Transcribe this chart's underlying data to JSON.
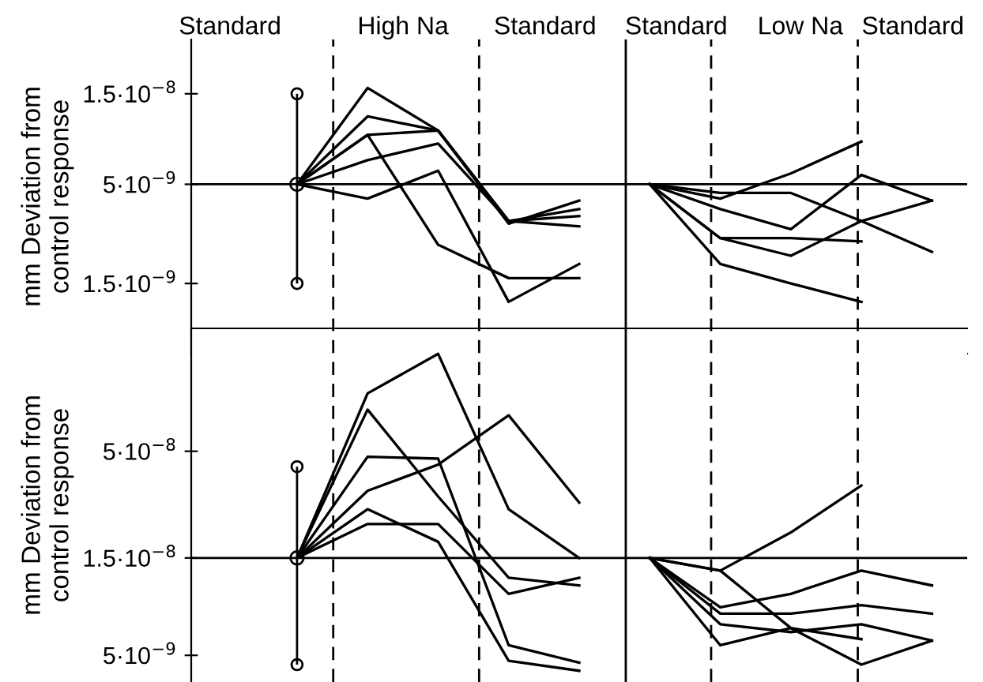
{
  "chart_data": [
    {
      "type": "line",
      "ylabel": "mm Deviation from\ncontrol response",
      "log": "y",
      "ylim": [
        6.4e-10,
        2.9e-08
      ],
      "yticks": [
        {
          "value": 1.5e-08,
          "label": "1.5·10$^{−8}$"
        },
        {
          "value": 5e-09,
          "label": "5·10$^{−9}$"
        },
        {
          "value": 1.5e-09,
          "label": "1.5·10$^{−9}$"
        }
      ],
      "tick_labels": "y",
      "marker": "none",
      "line_style": "solid",
      "categories": [
        null,
        null,
        null,
        null,
        null,
        null,
        null,
        null,
        null,
        null,
        null
      ],
      "ref_lines": [
        {
          "axis": "y",
          "value": 5e-09,
          "line_style": "solid"
        }
      ],
      "annotations": [
        "Standard",
        "High Na",
        "Standard",
        "Standard",
        "Low Na",
        "Standard"
      ],
      "series": [
        {
          "type": "scatter",
          "color": "#000000",
          "marker": "circle",
          "values": [
            null,
            5e-09,
            null,
            null,
            null,
            null,
            null,
            null,
            null,
            null,
            null
          ],
          "errors": [
            null,
            [
              1.5e-09,
              1.5e-08
            ],
            null,
            null,
            null,
            null,
            null,
            null,
            null,
            null,
            null
          ]
        },
        {
          "color": "#000000",
          "values": [
            null,
            5e-09,
            1.61e-08,
            9.6e-09,
            3.2e-09,
            3.7e-09,
            null,
            null,
            null,
            null,
            null
          ]
        },
        {
          "color": "#000000",
          "values": [
            null,
            5e-09,
            1.14e-08,
            9.6e-09,
            3.2e-09,
            3.4e-09,
            null,
            null,
            null,
            null,
            null
          ]
        },
        {
          "color": "#000000",
          "values": [
            null,
            5e-09,
            9.1e-09,
            9.6e-09,
            3.1e-09,
            4.1e-09,
            null,
            null,
            null,
            null,
            null
          ]
        },
        {
          "color": "#000000",
          "values": [
            null,
            5e-09,
            6.7e-09,
            8.2e-09,
            3.2e-09,
            3e-09,
            null,
            null,
            null,
            null,
            null
          ]
        },
        {
          "color": "#000000",
          "values": [
            null,
            5e-09,
            9.1e-09,
            2.4e-09,
            1.6e-09,
            1.6e-09,
            null,
            null,
            null,
            null,
            null
          ]
        },
        {
          "color": "#000000",
          "values": [
            null,
            5e-09,
            4.2e-09,
            5.9e-09,
            1.2e-09,
            1.9e-09,
            null,
            null,
            null,
            null,
            null
          ]
        },
        {
          "color": "#000000",
          "values": [
            null,
            null,
            null,
            null,
            null,
            null,
            5e-09,
            4.2e-09,
            5.7e-09,
            8.4e-09,
            null
          ]
        },
        {
          "color": "#000000",
          "values": [
            null,
            null,
            null,
            null,
            null,
            null,
            5e-09,
            4.5e-09,
            4.5e-09,
            3.2e-09,
            2.2e-09
          ]
        },
        {
          "color": "#000000",
          "values": [
            null,
            null,
            null,
            null,
            null,
            null,
            5e-09,
            3.7e-09,
            2.9e-09,
            5.6e-09,
            4.1e-09
          ]
        },
        {
          "color": "#000000",
          "values": [
            null,
            null,
            null,
            null,
            null,
            null,
            5e-09,
            2.6e-09,
            2.1e-09,
            3.2e-09,
            4.1e-09
          ]
        },
        {
          "color": "#000000",
          "values": [
            null,
            null,
            null,
            null,
            null,
            null,
            5e-09,
            2.6e-09,
            2.6e-09,
            2.5e-09,
            null
          ]
        },
        {
          "color": "#000000",
          "values": [
            null,
            null,
            null,
            null,
            null,
            null,
            5e-09,
            1.9e-09,
            1.5e-09,
            1.2e-09,
            null
          ]
        }
      ]
    },
    {
      "type": "line",
      "ylabel": "mm Deviation from\ncontrol response",
      "log": "y",
      "ylim": [
        3.7e-09,
        2e-07
      ],
      "yticks": [
        {
          "value": 5e-08,
          "label": "5·10$^{−8}$"
        },
        {
          "value": 1.5e-08,
          "label": "1.5·10$^{−8}$"
        },
        {
          "value": 5e-09,
          "label": "5·10$^{−9}$"
        }
      ],
      "tick_labels": "y",
      "marker": "none",
      "line_style": "solid",
      "categories": [
        null,
        null,
        null,
        null,
        null,
        null,
        null,
        null,
        null,
        null,
        null
      ],
      "ref_lines": [
        {
          "axis": "y",
          "value": 1.5e-08,
          "line_style": "solid"
        }
      ],
      "series": [
        {
          "type": "scatter",
          "color": "#000000",
          "marker": "circle",
          "values": [
            null,
            1.5e-08,
            null,
            null,
            null,
            null,
            null,
            null,
            null,
            null,
            null
          ],
          "errors": [
            null,
            [
              4.5e-09,
              4.2e-08
            ],
            null,
            null,
            null,
            null,
            null,
            null,
            null,
            null,
            null
          ]
        },
        {
          "color": "#000000",
          "values": [
            null,
            1.5e-08,
            9.6e-08,
            1.5e-07,
            2.6e-08,
            1.5e-08,
            null,
            null,
            null,
            null,
            null
          ]
        },
        {
          "color": "#000000",
          "values": [
            null,
            1.5e-08,
            3.2e-08,
            4.3e-08,
            7.5e-08,
            2.8e-08,
            null,
            null,
            null,
            null,
            null
          ]
        },
        {
          "color": "#000000",
          "values": [
            null,
            1.5e-08,
            8e-08,
            3e-08,
            1.2e-08,
            1.1e-08,
            null,
            null,
            null,
            null,
            null
          ]
        },
        {
          "color": "#000000",
          "values": [
            null,
            1.5e-08,
            4.7e-08,
            4.6e-08,
            5.6e-09,
            4.6e-09,
            null,
            null,
            null,
            null,
            null
          ]
        },
        {
          "color": "#000000",
          "values": [
            null,
            1.5e-08,
            2.6e-08,
            1.8e-08,
            4.7e-09,
            4.2e-09,
            null,
            null,
            null,
            null,
            null
          ]
        },
        {
          "color": "#000000",
          "values": [
            null,
            1.5e-08,
            2.2e-08,
            2.2e-08,
            1e-08,
            1.2e-08,
            null,
            null,
            null,
            null,
            null
          ]
        },
        {
          "color": "#000000",
          "values": [
            null,
            null,
            null,
            null,
            null,
            null,
            1.5e-08,
            1.3e-08,
            2e-08,
            3.4e-08,
            null
          ]
        },
        {
          "color": "#000000",
          "values": [
            null,
            null,
            null,
            null,
            null,
            null,
            1.5e-08,
            8.6e-09,
            1e-08,
            1.3e-08,
            1.1e-08
          ]
        },
        {
          "color": "#000000",
          "values": [
            null,
            null,
            null,
            null,
            null,
            null,
            1.5e-08,
            8e-09,
            8e-09,
            8.8e-09,
            8e-09
          ]
        },
        {
          "color": "#000000",
          "values": [
            null,
            null,
            null,
            null,
            null,
            null,
            1.5e-08,
            7.1e-09,
            6.5e-09,
            7.1e-09,
            5.9e-09
          ]
        },
        {
          "color": "#000000",
          "values": [
            null,
            null,
            null,
            null,
            null,
            null,
            1.5e-08,
            5.6e-09,
            6.8e-09,
            4.5e-09,
            5.9e-09
          ]
        },
        {
          "color": "#000000",
          "values": [
            null,
            null,
            null,
            null,
            null,
            null,
            1.5e-08,
            1.3e-08,
            6.8e-09,
            6e-09,
            null
          ]
        }
      ]
    }
  ]
}
